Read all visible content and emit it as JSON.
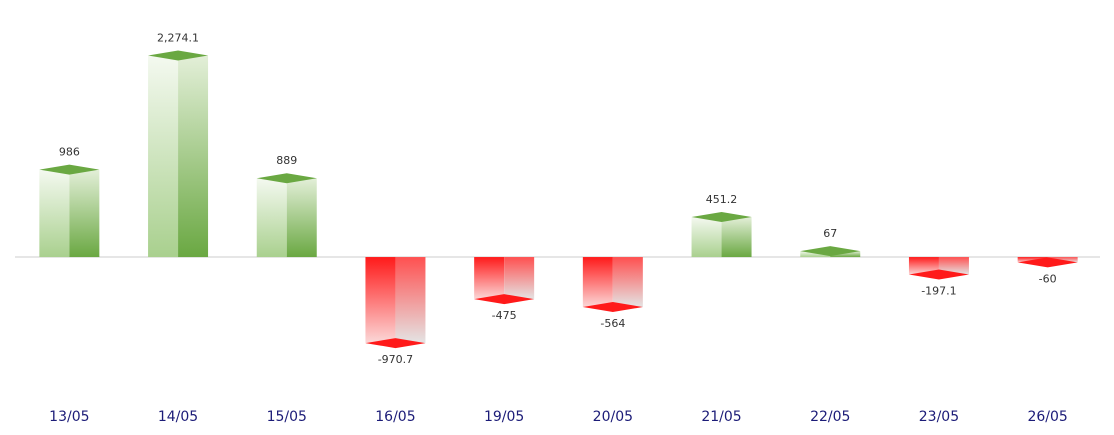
{
  "chart_data": {
    "type": "bar",
    "categories": [
      "13/05",
      "14/05",
      "15/05",
      "16/05",
      "19/05",
      "20/05",
      "21/05",
      "22/05",
      "23/05",
      "26/05"
    ],
    "values": [
      986,
      2274.1,
      889,
      -970.7,
      -475,
      -564,
      451.2,
      67,
      -197.1,
      -60
    ],
    "value_labels": [
      "986",
      "2,274.1",
      "889",
      "-970.7",
      "-475",
      "-564",
      "451.2",
      "67",
      "-197.1",
      "-60"
    ],
    "ylim": [
      -1500,
      2900
    ],
    "colors": {
      "positive": "#6aa842",
      "negative": "#ff1a1a"
    }
  }
}
